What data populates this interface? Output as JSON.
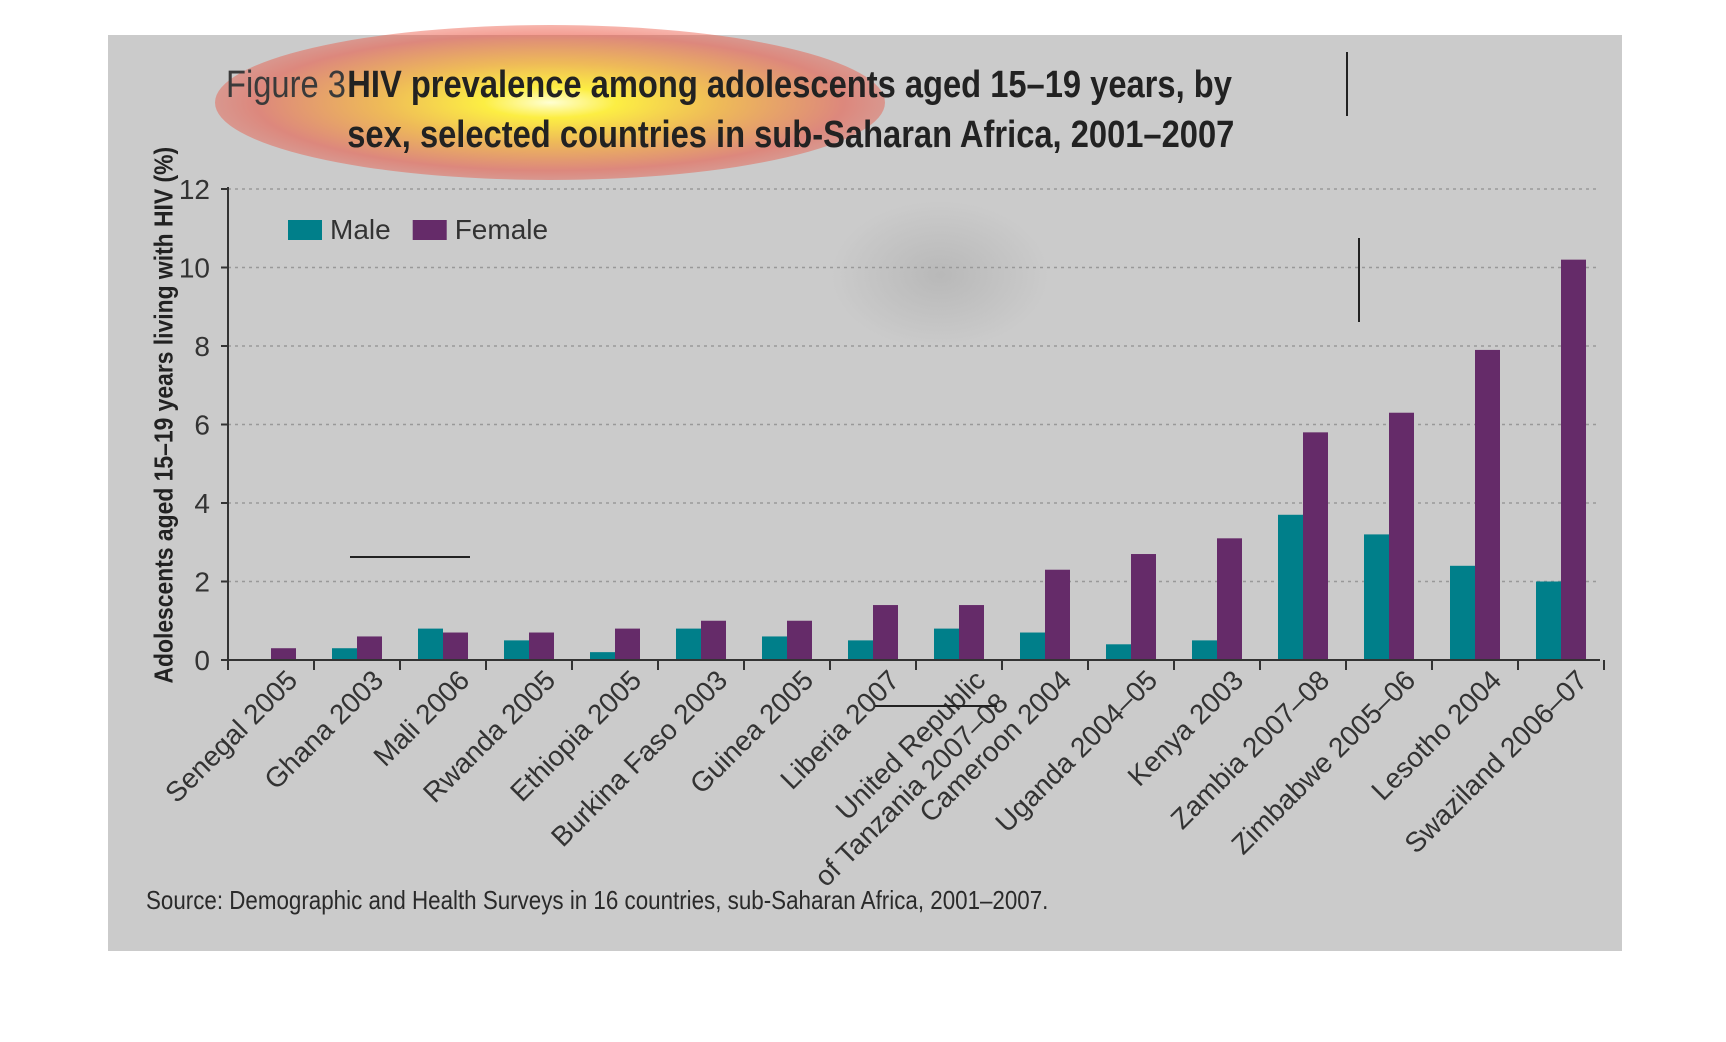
{
  "figure": {
    "label": "Figure 3",
    "title": "HIV prevalence among adolescents aged 15–19 years, by sex, selected countries in sub-Saharan Africa, 2001–2007",
    "source": "Source: Demographic and Health Surveys in 16 countries, sub-Saharan Africa, 2001–2007."
  },
  "colors": {
    "male": "#007f8a",
    "female": "#652b69",
    "panel": "#cbcbcb",
    "gridline": "#999999",
    "axis": "#333333"
  },
  "chart_data": {
    "type": "bar",
    "ylabel": "Adolescents aged 15–19 years living with HIV (%)",
    "xlabel": "",
    "ylim": [
      0,
      12
    ],
    "yticks": [
      0,
      2,
      4,
      6,
      8,
      10,
      12
    ],
    "grid": "horizontal dotted",
    "legend_position": "top-left",
    "categories": [
      "Senegal 2005",
      "Ghana 2003",
      "Mali 2006",
      "Rwanda 2005",
      "Ethiopia 2005",
      "Burkina Faso 2003",
      "Guinea 2005",
      "Liberia 2007",
      "United Republic of Tanzania 2007–08",
      "Cameroon 2004",
      "Uganda 2004–05",
      "Kenya 2003",
      "Zambia 2007–08",
      "Zimbabwe 2005–06",
      "Lesotho 2004",
      "Swaziland 2006–07"
    ],
    "series": [
      {
        "name": "Male",
        "values": [
          0,
          0.3,
          0.8,
          0.5,
          0.2,
          0.8,
          0.6,
          0.5,
          0.8,
          0.7,
          0.4,
          0.5,
          3.7,
          3.2,
          2.4,
          2.0
        ]
      },
      {
        "name": "Female",
        "values": [
          0.3,
          0.6,
          0.7,
          0.7,
          0.8,
          1.0,
          1.0,
          1.4,
          1.4,
          2.3,
          2.7,
          3.1,
          5.8,
          6.3,
          7.9,
          10.2
        ]
      }
    ]
  }
}
